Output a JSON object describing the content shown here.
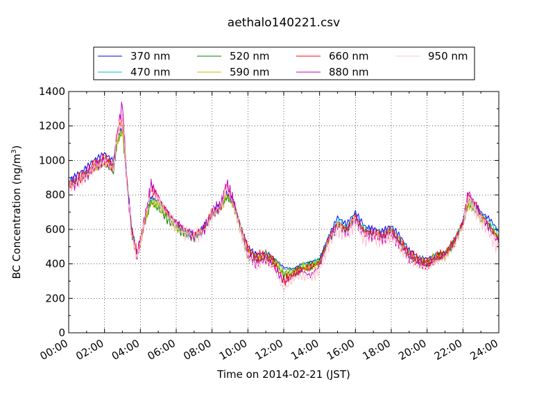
{
  "chart_data": {
    "type": "line",
    "title": "aethalo140221.csv",
    "xlabel": "Time on 2014-02-21 (JST)",
    "ylabel_main": "BC Concentration (ng/m",
    "ylabel_sup": "3",
    "ylabel_end": ")",
    "ylim": [
      0,
      1400
    ],
    "xlim": [
      "00:00",
      "24:00"
    ],
    "y_ticks": [
      "0",
      "200",
      "400",
      "600",
      "800",
      "1000",
      "1200",
      "1400"
    ],
    "x_ticks": [
      "00:00",
      "02:00",
      "04:00",
      "06:00",
      "08:00",
      "10:00",
      "12:00",
      "14:00",
      "16:00",
      "18:00",
      "20:00",
      "22:00",
      "24:00"
    ],
    "grid": true,
    "legend_placement": "top, above plot",
    "x_hours": [
      0,
      0.5,
      1,
      1.5,
      2,
      2.5,
      2.7,
      3,
      3.25,
      3.5,
      3.8,
      4,
      4.3,
      4.6,
      5,
      5.5,
      6,
      6.5,
      7,
      7.5,
      8,
      8.5,
      8.8,
      9.2,
      9.6,
      10,
      10.5,
      11,
      11.5,
      12,
      12.5,
      13,
      13.5,
      14,
      14.5,
      15,
      15.5,
      16,
      16.5,
      17,
      17.5,
      18,
      18.5,
      19,
      19.5,
      20,
      20.5,
      21,
      21.5,
      22,
      22.3,
      22.7,
      23,
      23.5,
      24
    ],
    "series": [
      {
        "name": "370 nm",
        "color": "#0000ff",
        "values": [
          880,
          920,
          960,
          1010,
          1040,
          1000,
          1130,
          1190,
          900,
          620,
          470,
          540,
          680,
          790,
          760,
          700,
          640,
          590,
          570,
          610,
          700,
          740,
          810,
          760,
          620,
          500,
          450,
          470,
          430,
          380,
          370,
          400,
          410,
          430,
          560,
          670,
          630,
          700,
          620,
          600,
          590,
          620,
          560,
          480,
          440,
          430,
          460,
          470,
          540,
          650,
          780,
          740,
          700,
          660,
          590
        ]
      },
      {
        "name": "470 nm",
        "color": "#00bfbf",
        "values": [
          870,
          900,
          940,
          990,
          1020,
          990,
          1120,
          1180,
          880,
          600,
          460,
          530,
          670,
          780,
          750,
          690,
          630,
          580,
          560,
          600,
          690,
          730,
          800,
          750,
          610,
          490,
          440,
          460,
          420,
          370,
          360,
          390,
          400,
          420,
          550,
          650,
          610,
          680,
          600,
          590,
          580,
          610,
          550,
          470,
          430,
          420,
          450,
          460,
          530,
          640,
          760,
          720,
          680,
          640,
          570
        ]
      },
      {
        "name": "520 nm",
        "color": "#008000",
        "values": [
          860,
          880,
          920,
          950,
          980,
          930,
          1100,
          1170,
          870,
          590,
          450,
          520,
          660,
          760,
          720,
          660,
          610,
          570,
          550,
          590,
          680,
          720,
          790,
          740,
          600,
          430,
          420,
          440,
          410,
          330,
          350,
          370,
          390,
          410,
          530,
          620,
          600,
          660,
          590,
          570,
          560,
          590,
          520,
          440,
          410,
          400,
          440,
          450,
          520,
          630,
          740,
          700,
          660,
          610,
          540
        ]
      },
      {
        "name": "590 nm",
        "color": "#bfbf00",
        "values": [
          850,
          880,
          920,
          960,
          990,
          960,
          1110,
          1180,
          870,
          590,
          450,
          520,
          660,
          760,
          740,
          680,
          600,
          570,
          560,
          590,
          680,
          720,
          800,
          740,
          600,
          470,
          430,
          450,
          410,
          350,
          340,
          380,
          390,
          400,
          540,
          630,
          600,
          670,
          590,
          580,
          560,
          600,
          530,
          460,
          420,
          410,
          440,
          450,
          520,
          630,
          750,
          710,
          670,
          620,
          550
        ]
      },
      {
        "name": "660 nm",
        "color": "#ff0000",
        "values": [
          860,
          890,
          930,
          980,
          1010,
          970,
          1150,
          1250,
          880,
          600,
          460,
          540,
          690,
          840,
          780,
          700,
          640,
          600,
          570,
          600,
          700,
          740,
          860,
          760,
          620,
          480,
          440,
          450,
          400,
          300,
          340,
          370,
          380,
          410,
          550,
          640,
          600,
          680,
          580,
          580,
          560,
          590,
          520,
          460,
          420,
          400,
          440,
          460,
          530,
          640,
          800,
          740,
          690,
          620,
          540
        ]
      },
      {
        "name": "880 nm",
        "color": "#bf00bf",
        "values": [
          850,
          880,
          920,
          970,
          1000,
          960,
          1160,
          1330,
          870,
          590,
          450,
          530,
          690,
          860,
          790,
          700,
          640,
          590,
          560,
          590,
          700,
          740,
          870,
          760,
          610,
          460,
          400,
          430,
          380,
          290,
          330,
          360,
          330,
          390,
          540,
          620,
          580,
          660,
          570,
          570,
          550,
          580,
          510,
          440,
          410,
          390,
          430,
          450,
          520,
          640,
          820,
          740,
          680,
          600,
          520
        ]
      },
      {
        "name": "950 nm",
        "color": "#ffc0cb",
        "values": [
          840,
          870,
          910,
          960,
          990,
          950,
          1140,
          1260,
          860,
          580,
          440,
          520,
          680,
          830,
          770,
          690,
          620,
          580,
          560,
          580,
          690,
          730,
          840,
          740,
          590,
          440,
          380,
          420,
          360,
          250,
          310,
          330,
          320,
          360,
          510,
          600,
          560,
          640,
          540,
          560,
          520,
          560,
          490,
          420,
          390,
          370,
          410,
          430,
          500,
          620,
          780,
          710,
          650,
          570,
          480
        ]
      }
    ]
  }
}
